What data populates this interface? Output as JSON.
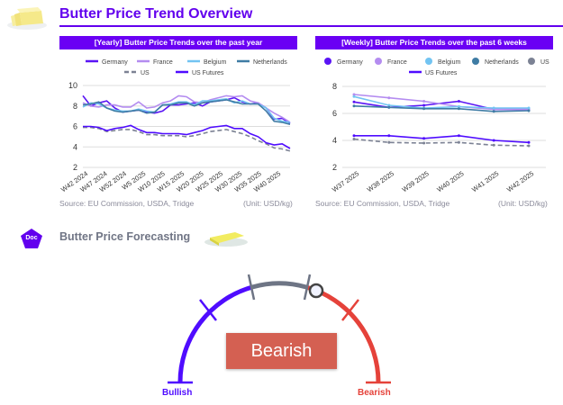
{
  "header": {
    "title": "Butter Price Trend Overview"
  },
  "colors": {
    "accent": "#6200ee",
    "Germany": "#5a14f5",
    "France": "#b48cf0",
    "Belgium": "#72c4f2",
    "Netherlands": "#3f7ca4",
    "US": "#7c8294",
    "US Futures": "#4f0cff",
    "bullish": "#4f0cff",
    "neutral": "#6e7585",
    "bearish": "#e5423a"
  },
  "chart_data": [
    {
      "type": "line",
      "title": "[Yearly] Butter Price Trends over the past year",
      "ylim": [
        2,
        10
      ],
      "yticks": [
        2,
        4,
        6,
        8,
        10
      ],
      "xticks": [
        "W42 2024",
        "W47 2024",
        "W52 2024",
        "W5 2025",
        "W10 2025",
        "W15 2025",
        "W20 2025",
        "W25 2025",
        "W30 2025",
        "W35 2025",
        "W40 2025"
      ],
      "series": [
        {
          "name": "Germany",
          "values": [
            9.0,
            8.0,
            8.3,
            8.5,
            7.8,
            7.4,
            7.5,
            7.6,
            7.4,
            7.3,
            7.5,
            8.1,
            8.1,
            8.2,
            8.3,
            8.0,
            8.4,
            8.5,
            8.6,
            8.8,
            8.4,
            8.2,
            8.3,
            7.8,
            6.7,
            6.8,
            6.3
          ]
        },
        {
          "name": "France",
          "values": [
            8.3,
            8.0,
            7.9,
            8.1,
            8.1,
            7.9,
            7.9,
            8.4,
            7.8,
            7.9,
            8.3,
            8.5,
            9.0,
            8.9,
            8.4,
            8.3,
            8.6,
            8.8,
            9.0,
            8.9,
            9.0,
            8.5,
            8.3,
            7.8,
            7.3,
            6.9,
            6.4
          ]
        },
        {
          "name": "Belgium",
          "values": [
            7.9,
            8.3,
            8.2,
            7.8,
            7.6,
            7.5,
            7.5,
            7.7,
            7.5,
            7.4,
            8.1,
            8.2,
            8.4,
            8.4,
            8.1,
            8.5,
            8.5,
            8.6,
            8.7,
            8.3,
            8.5,
            8.2,
            8.2,
            7.8,
            6.8,
            6.5,
            6.4
          ]
        },
        {
          "name": "Netherlands",
          "values": [
            8.1,
            8.2,
            8.4,
            7.8,
            7.5,
            7.4,
            7.5,
            7.6,
            7.3,
            7.4,
            8.1,
            8.1,
            8.3,
            8.3,
            8.0,
            8.3,
            8.4,
            8.5,
            8.6,
            8.4,
            8.2,
            8.2,
            8.2,
            7.5,
            6.5,
            6.4,
            6.2
          ]
        },
        {
          "name": "US",
          "dashed": true,
          "values": [
            5.9,
            5.9,
            5.8,
            5.5,
            5.6,
            5.7,
            5.7,
            5.5,
            5.2,
            5.2,
            5.1,
            5.1,
            5.1,
            5.0,
            5.1,
            5.3,
            5.5,
            5.6,
            5.7,
            5.5,
            5.3,
            5.0,
            4.6,
            4.3,
            3.9,
            3.8,
            3.6
          ]
        },
        {
          "name": "US Futures",
          "values": [
            6.0,
            6.0,
            5.9,
            5.6,
            5.8,
            5.9,
            6.1,
            5.7,
            5.4,
            5.4,
            5.3,
            5.3,
            5.3,
            5.2,
            5.4,
            5.6,
            5.9,
            6.0,
            6.1,
            5.8,
            5.8,
            5.3,
            5.0,
            4.4,
            4.2,
            4.3,
            3.85
          ]
        }
      ],
      "source": "Source: EU Commission, USDA, Tridge",
      "unit": "(Unit: USD/kg)"
    },
    {
      "type": "line",
      "title": "[Weekly] Butter Price Trends over the past 6 weeks",
      "ylim": [
        2,
        8
      ],
      "yticks": [
        2,
        4,
        6,
        8
      ],
      "xticks": [
        "W37 2025",
        "W38 2025",
        "W39 2025",
        "W40 2025",
        "W41 2025",
        "W42 2025"
      ],
      "series": [
        {
          "name": "Germany",
          "values": [
            6.85,
            6.45,
            6.6,
            6.9,
            6.3,
            6.3
          ]
        },
        {
          "name": "France",
          "values": [
            7.4,
            7.15,
            6.9,
            6.5,
            6.3,
            6.3
          ]
        },
        {
          "name": "Belgium",
          "values": [
            7.25,
            6.6,
            6.4,
            6.5,
            6.4,
            6.4
          ]
        },
        {
          "name": "Netherlands",
          "values": [
            6.55,
            6.45,
            6.35,
            6.35,
            6.15,
            6.2
          ]
        },
        {
          "name": "US",
          "dashed": true,
          "values": [
            4.1,
            3.85,
            3.8,
            3.85,
            3.65,
            3.6
          ]
        },
        {
          "name": "US Futures",
          "values": [
            4.35,
            4.35,
            4.15,
            4.35,
            4.0,
            3.85
          ]
        }
      ],
      "source": "Source: EU Commission, USDA, Tridge",
      "unit": "(Unit: USD/kg)"
    }
  ],
  "forecast": {
    "badge": "Doc",
    "title": "Butter Price Forecasting",
    "label": "Bearish",
    "left_label": "Bullish",
    "right_label": "Bearish",
    "needle_position": 0.62
  }
}
